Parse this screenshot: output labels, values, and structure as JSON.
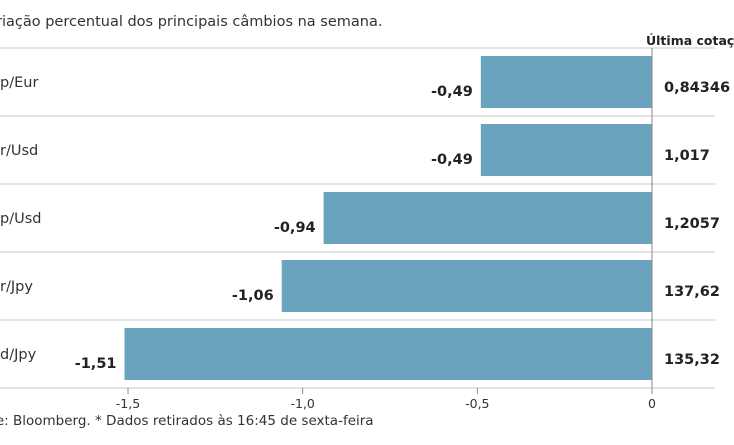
{
  "subtitle": "riação percentual dos principais câmbios na semana.",
  "last_quote_header": "Última cotaç",
  "source_note": "nte: Bloomberg.  * Dados retirados às 16:45 de sexta-feira",
  "colors": {
    "bar": "#6aa3bd",
    "grid": "#c8c8c8",
    "axis": "#888888"
  },
  "chart_data": {
    "type": "bar",
    "orientation": "horizontal",
    "title": "riação percentual dos principais câmbios na semana.",
    "categories": [
      "p/Eur",
      "r/Usd",
      "p/Usd",
      "r/Jpy",
      "d/Jpy"
    ],
    "values": [
      -0.49,
      -0.49,
      -0.94,
      -1.06,
      -1.51
    ],
    "value_labels": [
      "-0,49",
      "-0,49",
      "-0,94",
      "-1,06",
      "-1,51"
    ],
    "last_quotes": [
      "0,84346",
      "1,017",
      "1,2057",
      "137,62",
      "135,32"
    ],
    "xlim": [
      -1.55,
      0
    ],
    "xticks": [
      -1.5,
      -1.0,
      -0.5,
      0
    ],
    "xtick_labels": [
      "-1,5",
      "-1,0",
      "-0,5",
      "0"
    ],
    "grid": false
  }
}
